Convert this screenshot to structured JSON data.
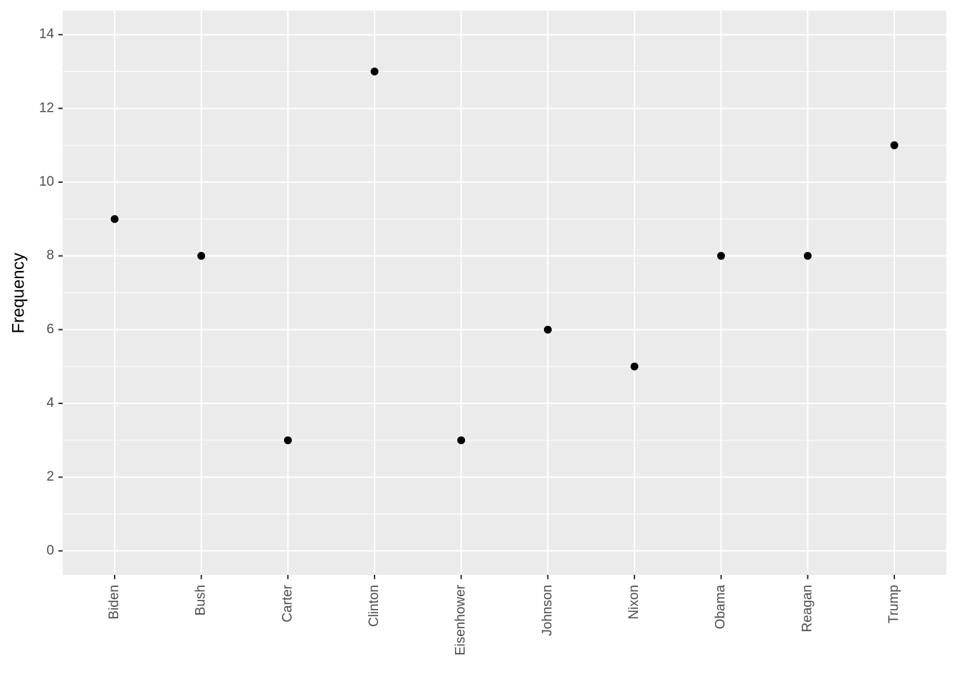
{
  "chart_data": {
    "type": "scatter",
    "y_label": "Frequency",
    "categories": [
      "Biden",
      "Bush",
      "Carter",
      "Clinton",
      "Eisenhower",
      "Johnson",
      "Nixon",
      "Obama",
      "Reagan",
      "Trump"
    ],
    "values": [
      9,
      8,
      3,
      13,
      3,
      6,
      5,
      8,
      8,
      11
    ],
    "color": "#000000",
    "ylim": [
      -0.65,
      14.65
    ],
    "yticks": [
      0,
      2,
      4,
      6,
      8,
      10,
      12,
      14
    ],
    "grid": true
  }
}
